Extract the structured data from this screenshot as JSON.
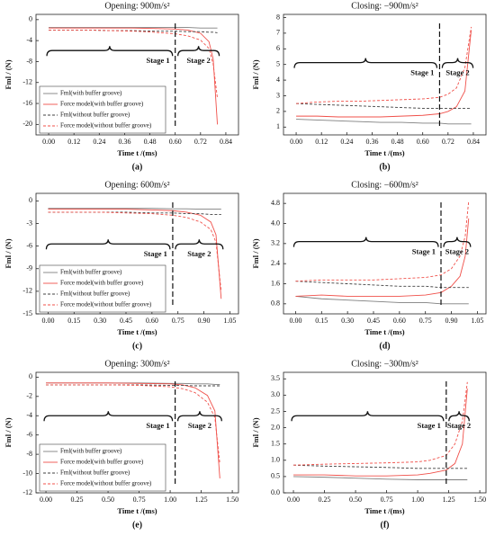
{
  "chart_data": [
    {
      "type": "line",
      "title": "Opening: 900m/s²",
      "x_label": "Time t /(ms)",
      "y_label": "Fml / (N)",
      "panel_label": "(a)",
      "xlim": [
        -0.06,
        0.9
      ],
      "ylim": [
        -22,
        1
      ],
      "xticks": [
        {
          "value": 0,
          "label": "0.00"
        },
        0.12,
        0.24,
        0.36,
        0.48,
        {
          "value": 0.6,
          "label": "0.60"
        },
        0.72,
        0.84
      ],
      "yticks": [
        -20,
        -16,
        -12,
        -8,
        -4,
        0
      ],
      "divider_x": 0.6,
      "stage_labels": [
        "Stage 1",
        "Stage 2"
      ],
      "legend": "lower left",
      "x": [
        0,
        0.1,
        0.2,
        0.3,
        0.4,
        0.5,
        0.6,
        0.66,
        0.72,
        0.76,
        0.78,
        0.8
      ],
      "series": [
        {
          "name": "Fml(with buffer groove)",
          "color": "#7f7f7f",
          "style": "solid",
          "values": [
            -1.5,
            -1.5,
            -1.5,
            -1.5,
            -1.5,
            -1.5,
            -1.5,
            -1.5,
            -1.6,
            -1.6,
            -1.6,
            -1.6
          ]
        },
        {
          "name": "Force model(with buffer groove)",
          "color": "#f0504a",
          "style": "solid",
          "values": [
            -1.6,
            -1.6,
            -1.6,
            -1.6,
            -1.6,
            -1.7,
            -1.8,
            -2.0,
            -2.6,
            -4.2,
            -7.5,
            -20
          ]
        },
        {
          "name": "Fml(without buffer groove)",
          "color": "#404040",
          "style": "dashed",
          "values": [
            -2,
            -2,
            -2,
            -2.1,
            -2.1,
            -2.2,
            -2.2,
            -2.3,
            -2.3,
            -2.4,
            -2.4,
            -2.5
          ]
        },
        {
          "name": "Force model(without buffer groove)",
          "color": "#f0504a",
          "style": "dashed",
          "values": [
            -2,
            -2,
            -2,
            -2.1,
            -2.2,
            -2.4,
            -2.7,
            -3.1,
            -3.9,
            -5.5,
            -8.5,
            -15
          ]
        }
      ]
    },
    {
      "type": "line",
      "title": "Closing: −900m/s²",
      "x_label": "Time t /(ms)",
      "y_label": "Fml / (N)",
      "panel_label": "(b)",
      "xlim": [
        -0.06,
        0.9
      ],
      "ylim": [
        0.5,
        8.2
      ],
      "xticks": [
        {
          "value": 0,
          "label": "0.00"
        },
        0.12,
        0.24,
        0.36,
        0.48,
        {
          "value": 0.6,
          "label": "0.60"
        },
        0.72,
        0.84
      ],
      "yticks": [
        1,
        2,
        3,
        4,
        5,
        6,
        7,
        8
      ],
      "divider_x": 0.68,
      "stage_labels": [
        "Stage 1",
        "Stage 2"
      ],
      "x": [
        0,
        0.1,
        0.2,
        0.3,
        0.4,
        0.5,
        0.6,
        0.68,
        0.72,
        0.76,
        0.8,
        0.83
      ],
      "series": [
        {
          "color": "#7f7f7f",
          "style": "solid",
          "values": [
            1.5,
            1.45,
            1.4,
            1.35,
            1.3,
            1.3,
            1.25,
            1.25,
            1.2,
            1.2,
            1.2,
            1.2
          ]
        },
        {
          "color": "#f0504a",
          "style": "solid",
          "values": [
            1.7,
            1.7,
            1.65,
            1.65,
            1.65,
            1.7,
            1.75,
            1.85,
            2.0,
            2.3,
            3.3,
            7.2
          ]
        },
        {
          "color": "#404040",
          "style": "dashed",
          "values": [
            2.5,
            2.45,
            2.4,
            2.35,
            2.3,
            2.25,
            2.2,
            2.2,
            2.2,
            2.2,
            2.2,
            2.2
          ]
        },
        {
          "color": "#f0504a",
          "style": "dashed",
          "values": [
            2.5,
            2.6,
            2.65,
            2.65,
            2.7,
            2.75,
            2.8,
            2.9,
            3.1,
            3.5,
            4.8,
            7.4
          ]
        }
      ]
    },
    {
      "type": "line",
      "title": "Opening: 600m/s²",
      "x_label": "Time t /(ms)",
      "y_label": "Fml / (N)",
      "panel_label": "(c)",
      "xlim": [
        -0.07,
        1.1
      ],
      "ylim": [
        -15,
        1
      ],
      "xticks": [
        {
          "value": 0,
          "label": "0.00"
        },
        0.15,
        {
          "value": 0.3,
          "label": "0.30"
        },
        0.45,
        {
          "value": 0.6,
          "label": "0.60"
        },
        0.75,
        {
          "value": 0.9,
          "label": "0.90"
        },
        1.05
      ],
      "yticks": [
        -15,
        -12,
        -9,
        -6,
        -3,
        0
      ],
      "divider_x": 0.72,
      "stage_labels": [
        "Stage 1",
        "Stage 2"
      ],
      "legend": "lower left",
      "x": [
        0,
        0.15,
        0.3,
        0.45,
        0.6,
        0.72,
        0.8,
        0.88,
        0.94,
        0.97,
        1.0
      ],
      "series": [
        {
          "name": "Fml(with buffer groove)",
          "color": "#7f7f7f",
          "style": "solid",
          "values": [
            -1,
            -1,
            -1,
            -1,
            -1,
            -1.05,
            -1.05,
            -1.1,
            -1.1,
            -1.1,
            -1.1
          ]
        },
        {
          "name": "Force model(with buffer groove)",
          "color": "#f0504a",
          "style": "solid",
          "values": [
            -1.1,
            -1.1,
            -1.1,
            -1.1,
            -1.2,
            -1.3,
            -1.5,
            -1.9,
            -2.8,
            -4.5,
            -13
          ]
        },
        {
          "name": "Fml(without buffer groove)",
          "color": "#404040",
          "style": "dashed",
          "values": [
            -1.5,
            -1.5,
            -1.5,
            -1.5,
            -1.6,
            -1.6,
            -1.7,
            -1.7,
            -1.8,
            -1.8,
            -1.8
          ]
        },
        {
          "name": "Force model(without buffer groove)",
          "color": "#f0504a",
          "style": "dashed",
          "values": [
            -1.5,
            -1.5,
            -1.5,
            -1.6,
            -1.7,
            -1.9,
            -2.2,
            -2.8,
            -3.8,
            -5.5,
            -12
          ]
        }
      ]
    },
    {
      "type": "line",
      "title": "Closing: −600m/s²",
      "x_label": "Time t /(ms)",
      "y_label": "Fml / (N)",
      "panel_label": "(d)",
      "xlim": [
        -0.07,
        1.1
      ],
      "ylim": [
        0.4,
        5.2
      ],
      "xticks": [
        {
          "value": 0,
          "label": "0.00"
        },
        0.15,
        {
          "value": 0.3,
          "label": "0.30"
        },
        0.45,
        {
          "value": 0.6,
          "label": "0.60"
        },
        0.75,
        {
          "value": 0.9,
          "label": "0.90"
        },
        1.05
      ],
      "yticks": [
        0.8,
        1.6,
        2.4,
        3.2,
        {
          "value": 4,
          "label": "4.0"
        },
        4.8
      ],
      "divider_x": 0.84,
      "stage_labels": [
        "Stage 1",
        "Stage 2"
      ],
      "x": [
        0,
        0.15,
        0.3,
        0.45,
        0.6,
        0.75,
        0.84,
        0.9,
        0.95,
        0.98,
        1.0
      ],
      "series": [
        {
          "color": "#7f7f7f",
          "style": "solid",
          "values": [
            1.1,
            1.0,
            0.95,
            0.9,
            0.85,
            0.85,
            0.8,
            0.8,
            0.8,
            0.8,
            0.8
          ]
        },
        {
          "color": "#f0504a",
          "style": "solid",
          "values": [
            1.1,
            1.15,
            1.1,
            1.1,
            1.1,
            1.15,
            1.25,
            1.5,
            1.9,
            2.7,
            4.2
          ]
        },
        {
          "color": "#404040",
          "style": "dashed",
          "values": [
            1.7,
            1.65,
            1.6,
            1.55,
            1.5,
            1.5,
            1.45,
            1.45,
            1.45,
            1.45,
            1.45
          ]
        },
        {
          "color": "#f0504a",
          "style": "dashed",
          "values": [
            1.7,
            1.75,
            1.75,
            1.75,
            1.8,
            1.85,
            1.95,
            2.2,
            2.7,
            3.5,
            4.9
          ]
        }
      ]
    },
    {
      "type": "line",
      "title": "Opening: 300m/s²",
      "x_label": "Time t /(ms)",
      "y_label": "Fml / (N)",
      "panel_label": "(e)",
      "xlim": [
        -0.08,
        1.55
      ],
      "ylim": [
        -12,
        0.5
      ],
      "xticks": [
        {
          "value": 0,
          "label": "0.00"
        },
        0.25,
        {
          "value": 0.5,
          "label": "0.50"
        },
        0.75,
        {
          "value": 1,
          "label": "1.00"
        },
        1.25,
        {
          "value": 1.5,
          "label": "1.50"
        }
      ],
      "yticks": [
        -12,
        -10,
        -8,
        -6,
        -4,
        -2,
        0
      ],
      "divider_x": 1.04,
      "stage_labels": [
        "Stage 1",
        "Stage 2"
      ],
      "legend": "lower left",
      "x": [
        0,
        0.25,
        0.5,
        0.75,
        1.0,
        1.1,
        1.2,
        1.3,
        1.36,
        1.4
      ],
      "series": [
        {
          "name": "Fml(with buffer groove)",
          "color": "#7f7f7f",
          "style": "solid",
          "values": [
            -0.6,
            -0.6,
            -0.6,
            -0.6,
            -0.65,
            -0.65,
            -0.7,
            -0.7,
            -0.75,
            -0.75
          ]
        },
        {
          "name": "Force model(with buffer groove)",
          "color": "#f0504a",
          "style": "solid",
          "values": [
            -0.6,
            -0.6,
            -0.6,
            -0.65,
            -0.7,
            -0.8,
            -1.1,
            -1.9,
            -3.5,
            -10.5
          ]
        },
        {
          "name": "Fml(without buffer groove)",
          "color": "#404040",
          "style": "dashed",
          "values": [
            -0.8,
            -0.8,
            -0.8,
            -0.8,
            -0.85,
            -0.85,
            -0.9,
            -0.9,
            -0.9,
            -0.9
          ]
        },
        {
          "name": "Force model(without buffer groove)",
          "color": "#f0504a",
          "style": "dashed",
          "values": [
            -0.8,
            -0.8,
            -0.8,
            -0.85,
            -1.0,
            -1.2,
            -1.6,
            -2.6,
            -4.2,
            -9
          ]
        }
      ]
    },
    {
      "type": "line",
      "title": "Closing: −300m/s²",
      "x_label": "Time t /(ms)",
      "y_label": "Fml / (N)",
      "panel_label": "(f)",
      "xlim": [
        -0.08,
        1.55
      ],
      "ylim": [
        0,
        3.7
      ],
      "xticks": [
        {
          "value": 0,
          "label": "0.00"
        },
        0.25,
        {
          "value": 0.5,
          "label": "0.50"
        },
        0.75,
        {
          "value": 1,
          "label": "1.00"
        },
        1.25,
        {
          "value": 1.5,
          "label": "1.50"
        }
      ],
      "yticks": [
        {
          "value": 0,
          "label": "0.0"
        },
        0.5,
        {
          "value": 1,
          "label": "1.0"
        },
        1.5,
        {
          "value": 2,
          "label": "2.0"
        },
        2.5,
        {
          "value": 3,
          "label": "3.0"
        },
        3.5
      ],
      "divider_x": 1.23,
      "stage_labels": [
        "Stage 1",
        "Stage 2"
      ],
      "x": [
        0,
        0.25,
        0.5,
        0.75,
        1.0,
        1.1,
        1.23,
        1.3,
        1.36,
        1.4
      ],
      "series": [
        {
          "color": "#7f7f7f",
          "style": "solid",
          "values": [
            0.5,
            0.48,
            0.45,
            0.42,
            0.4,
            0.4,
            0.4,
            0.4,
            0.4,
            0.4
          ]
        },
        {
          "color": "#f0504a",
          "style": "solid",
          "values": [
            0.55,
            0.55,
            0.52,
            0.52,
            0.55,
            0.6,
            0.7,
            0.9,
            1.5,
            3.2
          ]
        },
        {
          "color": "#404040",
          "style": "dashed",
          "values": [
            0.85,
            0.82,
            0.8,
            0.78,
            0.75,
            0.75,
            0.75,
            0.75,
            0.75,
            0.75
          ]
        },
        {
          "color": "#f0504a",
          "style": "dashed",
          "values": [
            0.85,
            0.88,
            0.9,
            0.92,
            0.95,
            1.0,
            1.15,
            1.5,
            2.2,
            3.4
          ]
        }
      ]
    }
  ]
}
